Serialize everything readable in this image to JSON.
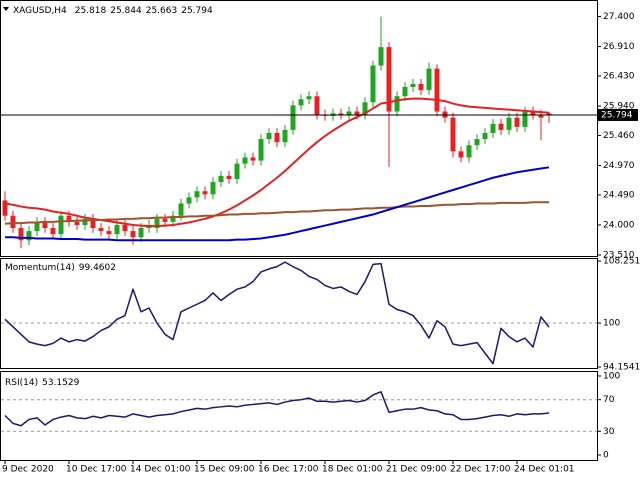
{
  "chart_data": [
    {
      "type": "candlestick",
      "title": "XAGUSD,H4",
      "header_values": [
        25.818,
        25.844,
        25.663,
        25.794
      ],
      "categories": [
        "9 Dec 2020",
        null,
        null,
        null,
        null,
        null,
        null,
        null,
        "10 Dec 17:00",
        null,
        null,
        null,
        null,
        null,
        null,
        null,
        "14 Dec 01:00",
        null,
        null,
        null,
        null,
        null,
        null,
        null,
        "15 Dec 09:00",
        null,
        null,
        null,
        null,
        null,
        null,
        null,
        "16 Dec 17:00",
        null,
        null,
        null,
        null,
        null,
        null,
        null,
        "18 Dec 01:00",
        null,
        null,
        null,
        null,
        null,
        null,
        null,
        "21 Dec 09:00",
        null,
        null,
        null,
        null,
        null,
        null,
        null,
        "22 Dec 17:00",
        null,
        null,
        null,
        null,
        null,
        null,
        null,
        "24 Dec 01:01",
        null,
        null,
        null,
        null
      ],
      "open": [
        24.4,
        24.15,
        23.95,
        23.75,
        23.9,
        24.05,
        23.95,
        23.85,
        24.15,
        24.05,
        24.0,
        24.1,
        23.95,
        23.9,
        23.85,
        24.0,
        23.9,
        23.8,
        23.95,
        23.95,
        24.1,
        24.05,
        24.15,
        24.35,
        24.45,
        24.55,
        24.5,
        24.7,
        24.8,
        24.75,
        25.0,
        25.1,
        25.05,
        25.4,
        25.5,
        25.35,
        25.55,
        25.95,
        26.05,
        26.1,
        25.8,
        25.78,
        25.82,
        25.8,
        25.85,
        25.8,
        26.0,
        26.6,
        26.9,
        25.85,
        26.1,
        26.25,
        26.3,
        26.2,
        26.55,
        25.85,
        25.75,
        25.2,
        25.1,
        25.3,
        25.4,
        25.5,
        25.65,
        25.55,
        25.75,
        25.6,
        25.85,
        25.8,
        25.818
      ],
      "high": [
        24.55,
        24.23,
        24.03,
        23.98,
        24.13,
        24.13,
        24.03,
        24.23,
        24.23,
        24.13,
        24.18,
        24.18,
        24.03,
        23.98,
        24.08,
        24.08,
        23.98,
        24.03,
        24.08,
        24.18,
        24.18,
        24.23,
        24.43,
        24.53,
        24.63,
        24.63,
        24.78,
        24.88,
        24.88,
        25.08,
        25.18,
        25.18,
        25.48,
        25.58,
        25.58,
        25.63,
        26.03,
        26.13,
        26.18,
        26.18,
        25.88,
        25.9,
        25.9,
        25.93,
        25.93,
        26.08,
        26.68,
        27.4,
        26.98,
        26.18,
        26.33,
        26.38,
        26.38,
        26.65,
        26.62,
        25.93,
        25.83,
        25.28,
        25.38,
        25.48,
        25.58,
        25.73,
        25.73,
        25.83,
        25.83,
        25.93,
        25.93,
        25.88,
        25.844
      ],
      "low": [
        24.07,
        23.87,
        23.62,
        23.67,
        23.82,
        23.87,
        23.77,
        23.77,
        23.97,
        23.92,
        23.92,
        23.87,
        23.82,
        23.77,
        23.77,
        23.82,
        23.68,
        23.72,
        23.87,
        23.87,
        23.97,
        23.97,
        24.07,
        24.27,
        24.37,
        24.42,
        24.42,
        24.62,
        24.67,
        24.67,
        24.92,
        24.97,
        24.97,
        25.32,
        25.27,
        25.27,
        25.47,
        25.87,
        25.97,
        25.72,
        25.7,
        25.7,
        25.72,
        25.72,
        25.72,
        25.72,
        25.92,
        26.52,
        24.95,
        25.77,
        26.02,
        26.17,
        26.12,
        26.12,
        25.77,
        25.67,
        25.1,
        25.02,
        25.02,
        25.22,
        25.32,
        25.42,
        25.47,
        25.47,
        25.52,
        25.52,
        25.72,
        25.38,
        25.663
      ],
      "close": [
        24.15,
        23.95,
        23.75,
        23.9,
        24.05,
        23.95,
        23.85,
        24.15,
        24.05,
        24.0,
        24.1,
        23.95,
        23.9,
        23.85,
        24.0,
        23.9,
        23.8,
        23.95,
        24.0,
        24.1,
        24.05,
        24.15,
        24.35,
        24.45,
        24.55,
        24.5,
        24.7,
        24.8,
        24.75,
        25.0,
        25.1,
        25.05,
        25.4,
        25.5,
        25.35,
        25.55,
        25.95,
        26.05,
        26.1,
        25.8,
        25.78,
        25.82,
        25.8,
        25.85,
        25.8,
        26.0,
        26.6,
        26.9,
        25.85,
        26.1,
        26.25,
        26.3,
        26.2,
        26.55,
        25.85,
        25.75,
        25.2,
        25.1,
        25.3,
        25.4,
        25.5,
        25.65,
        25.55,
        25.75,
        25.6,
        25.85,
        25.8,
        25.75,
        25.794
      ],
      "up_color": "#1fa51f",
      "down_color": "#e8201f",
      "overlays": [
        {
          "color": "#e8201f",
          "values": [
            24.35,
            24.33,
            24.3,
            24.28,
            24.27,
            24.25,
            24.22,
            24.2,
            24.18,
            24.15,
            24.12,
            24.1,
            24.08,
            24.06,
            24.04,
            24.02,
            24.0,
            23.99,
            23.98,
            23.98,
            23.99,
            24.0,
            24.02,
            24.04,
            24.07,
            24.1,
            24.14,
            24.19,
            24.25,
            24.32,
            24.4,
            24.48,
            24.57,
            24.67,
            24.77,
            24.88,
            25.0,
            25.12,
            25.24,
            25.35,
            25.45,
            25.54,
            25.62,
            25.7,
            25.76,
            25.82,
            25.9,
            25.98,
            26.0,
            26.03,
            26.05,
            26.06,
            26.06,
            26.05,
            26.04,
            26.02,
            25.98,
            25.95,
            25.93,
            25.92,
            25.91,
            25.9,
            25.89,
            25.88,
            25.87,
            25.86,
            25.85,
            25.84,
            25.83
          ]
        },
        {
          "color": "#a0522d",
          "values": [
            24.02,
            24.03,
            24.03,
            24.04,
            24.04,
            24.05,
            24.05,
            24.06,
            24.06,
            24.07,
            24.07,
            24.08,
            24.08,
            24.09,
            24.09,
            24.1,
            24.1,
            24.11,
            24.11,
            24.12,
            24.12,
            24.13,
            24.13,
            24.14,
            24.14,
            24.15,
            24.15,
            24.16,
            24.17,
            24.17,
            24.18,
            24.18,
            24.19,
            24.19,
            24.2,
            24.21,
            24.21,
            24.22,
            24.22,
            24.23,
            24.24,
            24.24,
            24.25,
            24.25,
            24.26,
            24.27,
            24.27,
            24.28,
            24.28,
            24.29,
            24.3,
            24.3,
            24.31,
            24.31,
            24.32,
            24.33,
            24.33,
            24.34,
            24.34,
            24.35,
            24.35,
            24.35,
            24.36,
            24.36,
            24.36,
            24.36,
            24.37,
            24.37,
            24.37
          ]
        },
        {
          "color": "#0000cd",
          "values": [
            23.8,
            23.8,
            23.79,
            23.79,
            23.78,
            23.78,
            23.78,
            23.77,
            23.77,
            23.77,
            23.76,
            23.76,
            23.76,
            23.76,
            23.75,
            23.75,
            23.75,
            23.75,
            23.75,
            23.75,
            23.75,
            23.75,
            23.75,
            23.75,
            23.75,
            23.75,
            23.75,
            23.75,
            23.75,
            23.76,
            23.76,
            23.77,
            23.78,
            23.8,
            23.82,
            23.84,
            23.87,
            23.9,
            23.93,
            23.96,
            23.99,
            24.02,
            24.05,
            24.08,
            24.11,
            24.14,
            24.17,
            24.21,
            24.25,
            24.29,
            24.33,
            24.37,
            24.41,
            24.45,
            24.49,
            24.53,
            24.57,
            24.61,
            24.65,
            24.69,
            24.73,
            24.77,
            24.8,
            24.83,
            24.86,
            24.88,
            24.9,
            24.92,
            24.94
          ]
        }
      ],
      "ylim": [
        23.51,
        27.62
      ],
      "yticks": [
        {
          "value": 27.4,
          "label": "27.400"
        },
        {
          "value": 26.91,
          "label": "26.910"
        },
        {
          "value": 26.43,
          "label": "26.430"
        },
        {
          "value": 25.94,
          "label": "25.940"
        },
        {
          "value": 25.46,
          "label": "25.460"
        },
        {
          "value": 24.97,
          "label": "24.970"
        },
        {
          "value": 24.49,
          "label": "24.490"
        },
        {
          "value": 24.0,
          "label": "24.000"
        },
        {
          "value": 23.51,
          "label": "23.510"
        }
      ],
      "grid": false
    },
    {
      "type": "line",
      "title": "Momentum(14)",
      "title_value": 99.4602,
      "series": [
        {
          "color": "#191970",
          "values": [
            100.5,
            99.5,
            98.5,
            97.5,
            97.2,
            97.0,
            97.3,
            98.0,
            97.5,
            97.8,
            97.6,
            98.2,
            99.0,
            99.5,
            100.5,
            101.0,
            104.5,
            101.5,
            102.0,
            100.0,
            98.5,
            97.8,
            101.5,
            102.0,
            102.5,
            103.0,
            104.0,
            103.0,
            103.8,
            104.5,
            104.8,
            105.5,
            106.8,
            107.2,
            107.5,
            108.1,
            107.5,
            107.0,
            106.2,
            105.8,
            105.0,
            104.6,
            104.8,
            104.2,
            103.8,
            105.5,
            107.8,
            107.9,
            102.5,
            101.8,
            101.5,
            101.0,
            99.7,
            98.0,
            100.3,
            99.5,
            97.2,
            97.0,
            97.2,
            97.4,
            96.0,
            94.6,
            99.3,
            98.2,
            97.5,
            98.0,
            96.8,
            100.8,
            99.46
          ]
        }
      ],
      "ylim": [
        94.1541,
        108.251
      ],
      "yticks": [
        108.251,
        100,
        94.1541
      ]
    },
    {
      "type": "line",
      "title": "RSI(14)",
      "title_value": 53.1529,
      "series": [
        {
          "color": "#191970",
          "values": [
            50,
            40,
            37,
            45,
            47,
            38,
            45,
            48,
            50,
            47,
            46,
            49,
            47,
            50,
            49,
            48,
            52,
            50,
            48,
            50,
            51,
            52,
            55,
            57,
            59,
            58,
            60,
            61,
            62,
            61,
            63,
            64,
            65,
            66,
            64,
            67,
            69,
            70,
            72,
            68,
            68,
            67,
            68,
            69,
            67,
            69,
            76,
            80,
            54,
            56,
            58,
            58,
            60,
            57,
            56,
            52,
            51,
            45,
            45,
            46,
            48,
            50,
            51,
            49,
            52,
            51,
            52,
            52,
            53.15
          ]
        }
      ],
      "ylim": [
        0,
        100
      ],
      "yticks": [
        100,
        70,
        30,
        0
      ]
    }
  ]
}
